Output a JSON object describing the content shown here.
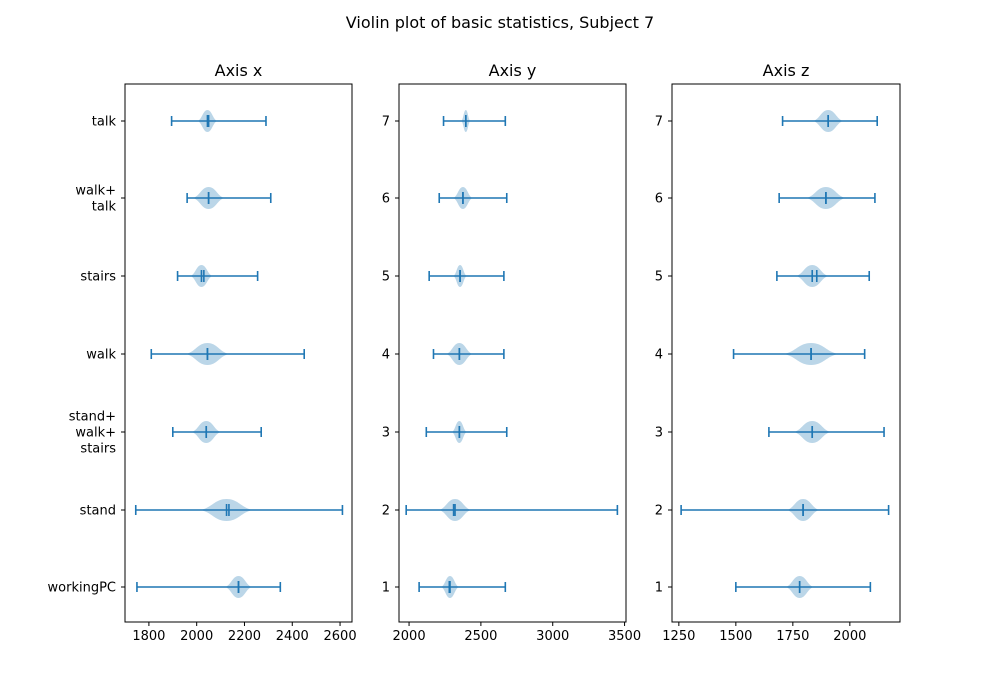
{
  "chart_data": {
    "type": "violin",
    "title": "Violin plot of basic statistics, Subject 7",
    "accent_color": "#1f77b4",
    "panels": [
      {
        "subtitle": "Axis x",
        "xlim": [
          1700,
          2650
        ],
        "xticks": [
          1800,
          2000,
          2200,
          2400,
          2600
        ],
        "yticklabels": [
          "workingPC",
          "stand",
          "stand+\nwalk+\nstairs",
          "walk",
          "stairs",
          "walk+\ntalk",
          "talk"
        ],
        "series": [
          {
            "min": 1750,
            "max": 2350,
            "mean": 2175,
            "median": 2175,
            "spread": 55
          },
          {
            "min": 1745,
            "max": 2610,
            "mean": 2125,
            "median": 2135,
            "spread": 110
          },
          {
            "min": 1900,
            "max": 2270,
            "mean": 2040,
            "median": 2040,
            "spread": 60
          },
          {
            "min": 1810,
            "max": 2450,
            "mean": 2045,
            "median": 2045,
            "spread": 90
          },
          {
            "min": 1920,
            "max": 2255,
            "mean": 2020,
            "median": 2030,
            "spread": 45
          },
          {
            "min": 1960,
            "max": 2310,
            "mean": 2050,
            "median": 2050,
            "spread": 65
          },
          {
            "min": 1895,
            "max": 2290,
            "mean": 2045,
            "median": 2050,
            "spread": 40
          }
        ]
      },
      {
        "subtitle": "Axis y",
        "xlim": [
          1930,
          3510
        ],
        "xticks": [
          2000,
          2500,
          3000,
          3500
        ],
        "yticklabels": [
          "1",
          "2",
          "3",
          "4",
          "5",
          "6",
          "7"
        ],
        "series": [
          {
            "min": 2070,
            "max": 2670,
            "mean": 2285,
            "median": 2280,
            "spread": 60
          },
          {
            "min": 1980,
            "max": 3450,
            "mean": 2320,
            "median": 2310,
            "spread": 110
          },
          {
            "min": 2120,
            "max": 2680,
            "mean": 2350,
            "median": 2350,
            "spread": 50
          },
          {
            "min": 2170,
            "max": 2660,
            "mean": 2350,
            "median": 2350,
            "spread": 90
          },
          {
            "min": 2140,
            "max": 2660,
            "mean": 2355,
            "median": 2355,
            "spread": 45
          },
          {
            "min": 2210,
            "max": 2680,
            "mean": 2375,
            "median": 2375,
            "spread": 65
          },
          {
            "min": 2240,
            "max": 2670,
            "mean": 2395,
            "median": 2395,
            "spread": 30
          }
        ]
      },
      {
        "subtitle": "Axis z",
        "xlim": [
          1220,
          2220
        ],
        "xticks": [
          1250,
          1500,
          1750,
          2000
        ],
        "yticklabels": [
          "1",
          "2",
          "3",
          "4",
          "5",
          "6",
          "7"
        ],
        "series": [
          {
            "min": 1500,
            "max": 2090,
            "mean": 1780,
            "median": 1780,
            "spread": 60
          },
          {
            "min": 1260,
            "max": 2170,
            "mean": 1795,
            "median": 1795,
            "spread": 70
          },
          {
            "min": 1645,
            "max": 2150,
            "mean": 1835,
            "median": 1835,
            "spread": 80
          },
          {
            "min": 1490,
            "max": 2065,
            "mean": 1830,
            "median": 1830,
            "spread": 120
          },
          {
            "min": 1680,
            "max": 2085,
            "mean": 1835,
            "median": 1855,
            "spread": 70
          },
          {
            "min": 1690,
            "max": 2110,
            "mean": 1895,
            "median": 1895,
            "spread": 85
          },
          {
            "min": 1705,
            "max": 2120,
            "mean": 1905,
            "median": 1905,
            "spread": 65
          }
        ]
      }
    ]
  }
}
